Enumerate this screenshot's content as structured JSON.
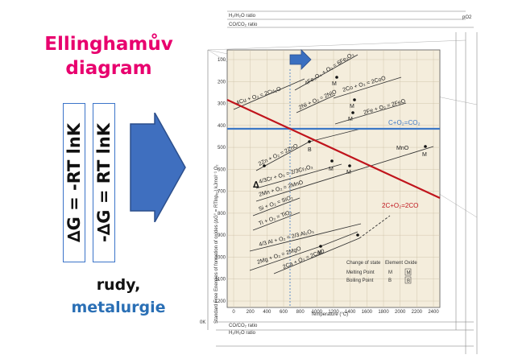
{
  "slide": {
    "title_line1": "Ellinghamův",
    "title_line2": "diagram",
    "formula_left": "∆G = -RT lnK",
    "formula_right": "-∆G = RT lnK",
    "bottom_line1": "rudy,",
    "bottom_line2": "metalurgie"
  },
  "chart": {
    "top_ratio_h2": "H₂/H₂O ratio",
    "top_ratio_co": "CO/CO₂ ratio",
    "bottom_ratio_co": "CO/CO₂ ratio",
    "bottom_ratio_h2": "H₂/H₂O ratio",
    "po2_label": "pO2",
    "y_axis_title": "Standard Free Energies of formation of oxides (∆G° = RTlnpₒ₂) kJmol⁻¹ O₂",
    "x_axis_title": "Temperature (°C)",
    "y_ticks": [
      "100",
      "200",
      "300",
      "400",
      "500",
      "600",
      "700",
      "800",
      "900",
      "1000",
      "1100",
      "1200"
    ],
    "x_ticks": [
      "0",
      "200",
      "400",
      "600",
      "800",
      "1000",
      "1200",
      "1400",
      "1600",
      "1800",
      "2000",
      "2200",
      "2400"
    ],
    "origin_label": "0K",
    "reactions": [
      "4Cu + O₂ = 2Cu₂O",
      "4Fe₃O₄ + O₂ = 6Fe₂O₃",
      "2Ni + O₂ = 2NiO",
      "2Co + O₂ = 2CoO",
      "2Fe + O₂ = 2FeO",
      "2Zn + O₂ = 2ZnO",
      "4/3Cr + O₂ = 2/3Cr₂O₃",
      "2Mn + O₂ = 2MnO",
      "Si + O₂ = SiO₂",
      "Ti + O₂ = TiO₂",
      "4/3 Al + O₂ = 2/3 Al₂O₃",
      "2Mg + O₂ = 2MgO",
      "2Ca + O₂ = 2CaO",
      "MnO",
      "M",
      "B"
    ],
    "annotation_co2": "C+O₂=CO₂",
    "annotation_2co": "2C+O₂=2CO",
    "delta_symbol": "∆",
    "legend": {
      "change_of_state": "Change of state",
      "element": "Element",
      "oxide": "Oxide",
      "melting": "Melting Point",
      "boiling": "Boiling Point",
      "m": "M",
      "b": "B"
    },
    "colors": {
      "co2_line": "#3c78c6",
      "co_line": "#c0141c",
      "arrow": "#3a6fc0",
      "plot_bg": "#f4eddc"
    }
  }
}
